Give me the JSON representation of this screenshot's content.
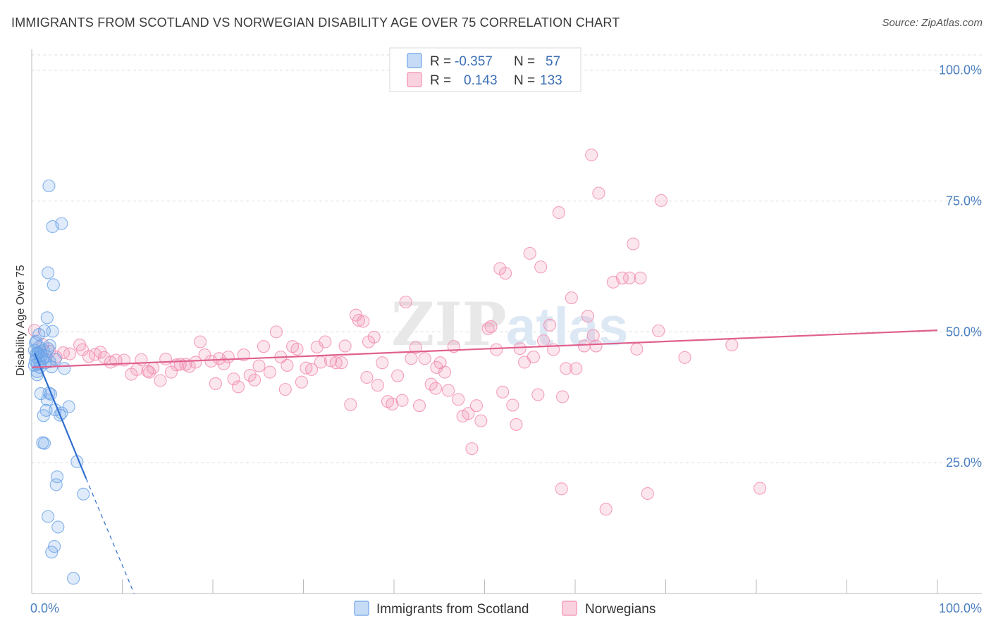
{
  "header": {
    "title": "IMMIGRANTS FROM SCOTLAND VS NORWEGIAN DISABILITY AGE OVER 75 CORRELATION CHART",
    "source": "Source: ZipAtlas.com"
  },
  "watermark": {
    "zip": "ZIP",
    "atlas": "atlas"
  },
  "legend": {
    "rows": [
      {
        "r_label": "R =",
        "r_value": "-0.357",
        "n_label": "N =",
        "n_value": "57",
        "color": "#6fa4e8"
      },
      {
        "r_label": "R =",
        "r_value": "0.143",
        "n_label": "N =",
        "n_value": "133",
        "color": "#f28fb0"
      }
    ]
  },
  "chart_data": {
    "type": "scatter",
    "title": "IMMIGRANTS FROM SCOTLAND VS NORWEGIAN DISABILITY AGE OVER 75 CORRELATION CHART",
    "ylabel": "Disability Age Over 75",
    "xlabel": "",
    "xlim": [
      0,
      100
    ],
    "ylim": [
      0,
      104
    ],
    "x_tick_labels": [
      "0.0%",
      "100.0%"
    ],
    "y_ticks": [
      25,
      50,
      75,
      100
    ],
    "y_tick_labels": [
      "25.0%",
      "50.0%",
      "75.0%",
      "100.0%"
    ],
    "grid": true,
    "legend_placement": "top-center and bottom",
    "series": [
      {
        "name": "Immigrants from Scotland",
        "color": "#6fa4e8",
        "trend": {
          "x0": 0.3,
          "y0": 46.0,
          "x1": 6.0,
          "y1": 22.0,
          "dash_to_x": 11.3,
          "dash_to_y": 0.0
        },
        "points": [
          [
            0.3,
            46.5
          ],
          [
            0.5,
            45.2
          ],
          [
            0.6,
            43.8
          ],
          [
            0.8,
            47.1
          ],
          [
            0.4,
            44.5
          ],
          [
            0.7,
            45.9
          ],
          [
            1.0,
            46.2
          ],
          [
            1.2,
            44.9
          ],
          [
            0.9,
            43.2
          ],
          [
            1.5,
            44.1
          ],
          [
            0.6,
            42.4
          ],
          [
            1.1,
            45.5
          ],
          [
            1.8,
            46.8
          ],
          [
            2.0,
            44.3
          ],
          [
            0.5,
            48.2
          ],
          [
            0.8,
            49.5
          ],
          [
            1.4,
            50.2
          ],
          [
            2.3,
            50.1
          ],
          [
            1.7,
            52.7
          ],
          [
            1.8,
            61.3
          ],
          [
            2.4,
            59.0
          ],
          [
            2.3,
            70.1
          ],
          [
            3.3,
            70.7
          ],
          [
            1.9,
            77.9
          ],
          [
            3.6,
            43.0
          ],
          [
            2.2,
            43.3
          ],
          [
            0.4,
            47.9
          ],
          [
            0.6,
            41.8
          ],
          [
            0.3,
            43.6
          ],
          [
            1.0,
            38.2
          ],
          [
            1.9,
            38.3
          ],
          [
            1.3,
            34.0
          ],
          [
            1.6,
            35.0
          ],
          [
            2.1,
            38.1
          ],
          [
            2.6,
            35.1
          ],
          [
            3.1,
            34.1
          ],
          [
            3.3,
            34.5
          ],
          [
            4.1,
            35.7
          ],
          [
            1.7,
            37.0
          ],
          [
            1.2,
            28.8
          ],
          [
            1.4,
            28.7
          ],
          [
            2.8,
            22.3
          ],
          [
            2.7,
            20.8
          ],
          [
            5.0,
            25.2
          ],
          [
            5.7,
            19.0
          ],
          [
            1.8,
            14.7
          ],
          [
            2.9,
            12.7
          ],
          [
            2.5,
            9.0
          ],
          [
            2.2,
            7.9
          ],
          [
            4.6,
            2.9
          ],
          [
            0.9,
            44.0
          ],
          [
            1.3,
            46.5
          ],
          [
            2.6,
            44.8
          ],
          [
            0.7,
            46.0
          ],
          [
            1.6,
            45.3
          ],
          [
            0.5,
            45.8
          ],
          [
            2.0,
            47.4
          ]
        ]
      },
      {
        "name": "Norwegians",
        "color": "#f28fb0",
        "trend": {
          "x0": 0.0,
          "y0": 43.2,
          "x1": 100.0,
          "y1": 50.3
        },
        "points": [
          [
            0.3,
            50.3
          ],
          [
            1.2,
            47.6
          ],
          [
            2.0,
            46.3
          ],
          [
            2.7,
            45.2
          ],
          [
            3.5,
            46.0
          ],
          [
            4.2,
            45.8
          ],
          [
            5.3,
            47.5
          ],
          [
            5.6,
            46.6
          ],
          [
            6.3,
            45.3
          ],
          [
            7.0,
            45.7
          ],
          [
            7.6,
            46.1
          ],
          [
            8.0,
            45.1
          ],
          [
            8.7,
            44.2
          ],
          [
            9.3,
            44.6
          ],
          [
            10.2,
            44.6
          ],
          [
            11.0,
            41.9
          ],
          [
            11.6,
            42.8
          ],
          [
            12.1,
            44.7
          ],
          [
            12.8,
            42.5
          ],
          [
            13.0,
            42.3
          ],
          [
            13.4,
            43.1
          ],
          [
            14.2,
            40.7
          ],
          [
            14.8,
            44.8
          ],
          [
            15.4,
            42.3
          ],
          [
            16.0,
            43.7
          ],
          [
            16.4,
            43.8
          ],
          [
            17.0,
            43.8
          ],
          [
            17.4,
            43.4
          ],
          [
            18.1,
            44.2
          ],
          [
            18.6,
            48.1
          ],
          [
            19.1,
            45.6
          ],
          [
            19.8,
            44.4
          ],
          [
            20.3,
            40.1
          ],
          [
            20.7,
            44.9
          ],
          [
            21.2,
            43.9
          ],
          [
            21.7,
            45.2
          ],
          [
            22.3,
            41.0
          ],
          [
            22.8,
            39.5
          ],
          [
            23.4,
            45.6
          ],
          [
            24.1,
            41.7
          ],
          [
            24.6,
            40.8
          ],
          [
            25.1,
            43.5
          ],
          [
            25.6,
            47.2
          ],
          [
            26.3,
            42.3
          ],
          [
            27.0,
            50.0
          ],
          [
            27.5,
            45.2
          ],
          [
            28.2,
            43.6
          ],
          [
            28.8,
            47.2
          ],
          [
            29.3,
            46.7
          ],
          [
            29.8,
            40.4
          ],
          [
            30.3,
            43.1
          ],
          [
            30.9,
            42.8
          ],
          [
            31.5,
            47.1
          ],
          [
            31.9,
            44.2
          ],
          [
            32.4,
            48.1
          ],
          [
            33.0,
            44.5
          ],
          [
            33.6,
            44.1
          ],
          [
            34.2,
            44.1
          ],
          [
            34.6,
            47.3
          ],
          [
            35.2,
            36.1
          ],
          [
            35.8,
            53.2
          ],
          [
            36.1,
            52.2
          ],
          [
            36.6,
            52.0
          ],
          [
            37.2,
            48.1
          ],
          [
            37.8,
            49.0
          ],
          [
            38.2,
            39.8
          ],
          [
            38.7,
            44.1
          ],
          [
            39.3,
            36.7
          ],
          [
            39.8,
            36.2
          ],
          [
            40.4,
            41.6
          ],
          [
            40.9,
            36.9
          ],
          [
            41.3,
            55.7
          ],
          [
            41.9,
            44.9
          ],
          [
            42.4,
            47.0
          ],
          [
            42.8,
            35.9
          ],
          [
            43.4,
            44.9
          ],
          [
            44.1,
            40.0
          ],
          [
            44.6,
            39.2
          ],
          [
            45.1,
            44.1
          ],
          [
            45.6,
            42.3
          ],
          [
            46.0,
            38.8
          ],
          [
            46.6,
            47.2
          ],
          [
            47.1,
            37.1
          ],
          [
            47.6,
            33.9
          ],
          [
            48.2,
            34.4
          ],
          [
            48.6,
            27.7
          ],
          [
            49.1,
            35.9
          ],
          [
            49.6,
            33.0
          ],
          [
            50.4,
            50.6
          ],
          [
            50.7,
            51.0
          ],
          [
            51.3,
            46.6
          ],
          [
            51.7,
            62.1
          ],
          [
            52.3,
            61.2
          ],
          [
            53.1,
            36.0
          ],
          [
            53.5,
            32.3
          ],
          [
            53.9,
            46.8
          ],
          [
            54.4,
            44.2
          ],
          [
            55.0,
            65.0
          ],
          [
            55.4,
            45.2
          ],
          [
            55.9,
            38.0
          ],
          [
            56.2,
            62.4
          ],
          [
            57.2,
            51.3
          ],
          [
            57.6,
            46.6
          ],
          [
            58.2,
            72.8
          ],
          [
            58.6,
            37.6
          ],
          [
            59.0,
            43.0
          ],
          [
            59.6,
            56.5
          ],
          [
            60.1,
            43.0
          ],
          [
            61.0,
            47.3
          ],
          [
            61.4,
            53.0
          ],
          [
            62.0,
            49.3
          ],
          [
            62.3,
            47.3
          ],
          [
            61.8,
            83.8
          ],
          [
            62.6,
            76.5
          ],
          [
            63.4,
            16.1
          ],
          [
            64.2,
            59.5
          ],
          [
            65.2,
            60.3
          ],
          [
            66.0,
            60.3
          ],
          [
            66.4,
            66.8
          ],
          [
            67.2,
            60.3
          ],
          [
            68.0,
            19.1
          ],
          [
            69.2,
            50.2
          ],
          [
            69.5,
            75.1
          ],
          [
            58.5,
            20.0
          ],
          [
            77.3,
            47.5
          ],
          [
            80.4,
            20.1
          ],
          [
            72.1,
            45.1
          ],
          [
            66.8,
            46.7
          ],
          [
            56.5,
            48.3
          ],
          [
            52.0,
            38.5
          ],
          [
            44.7,
            43.2
          ],
          [
            37.0,
            41.3
          ],
          [
            28.0,
            39.0
          ]
        ]
      }
    ]
  },
  "bottom_legend": [
    {
      "label": "Immigrants from Scotland",
      "color": "#6fa4e8"
    },
    {
      "label": "Norwegians",
      "color": "#f28fb0"
    }
  ]
}
